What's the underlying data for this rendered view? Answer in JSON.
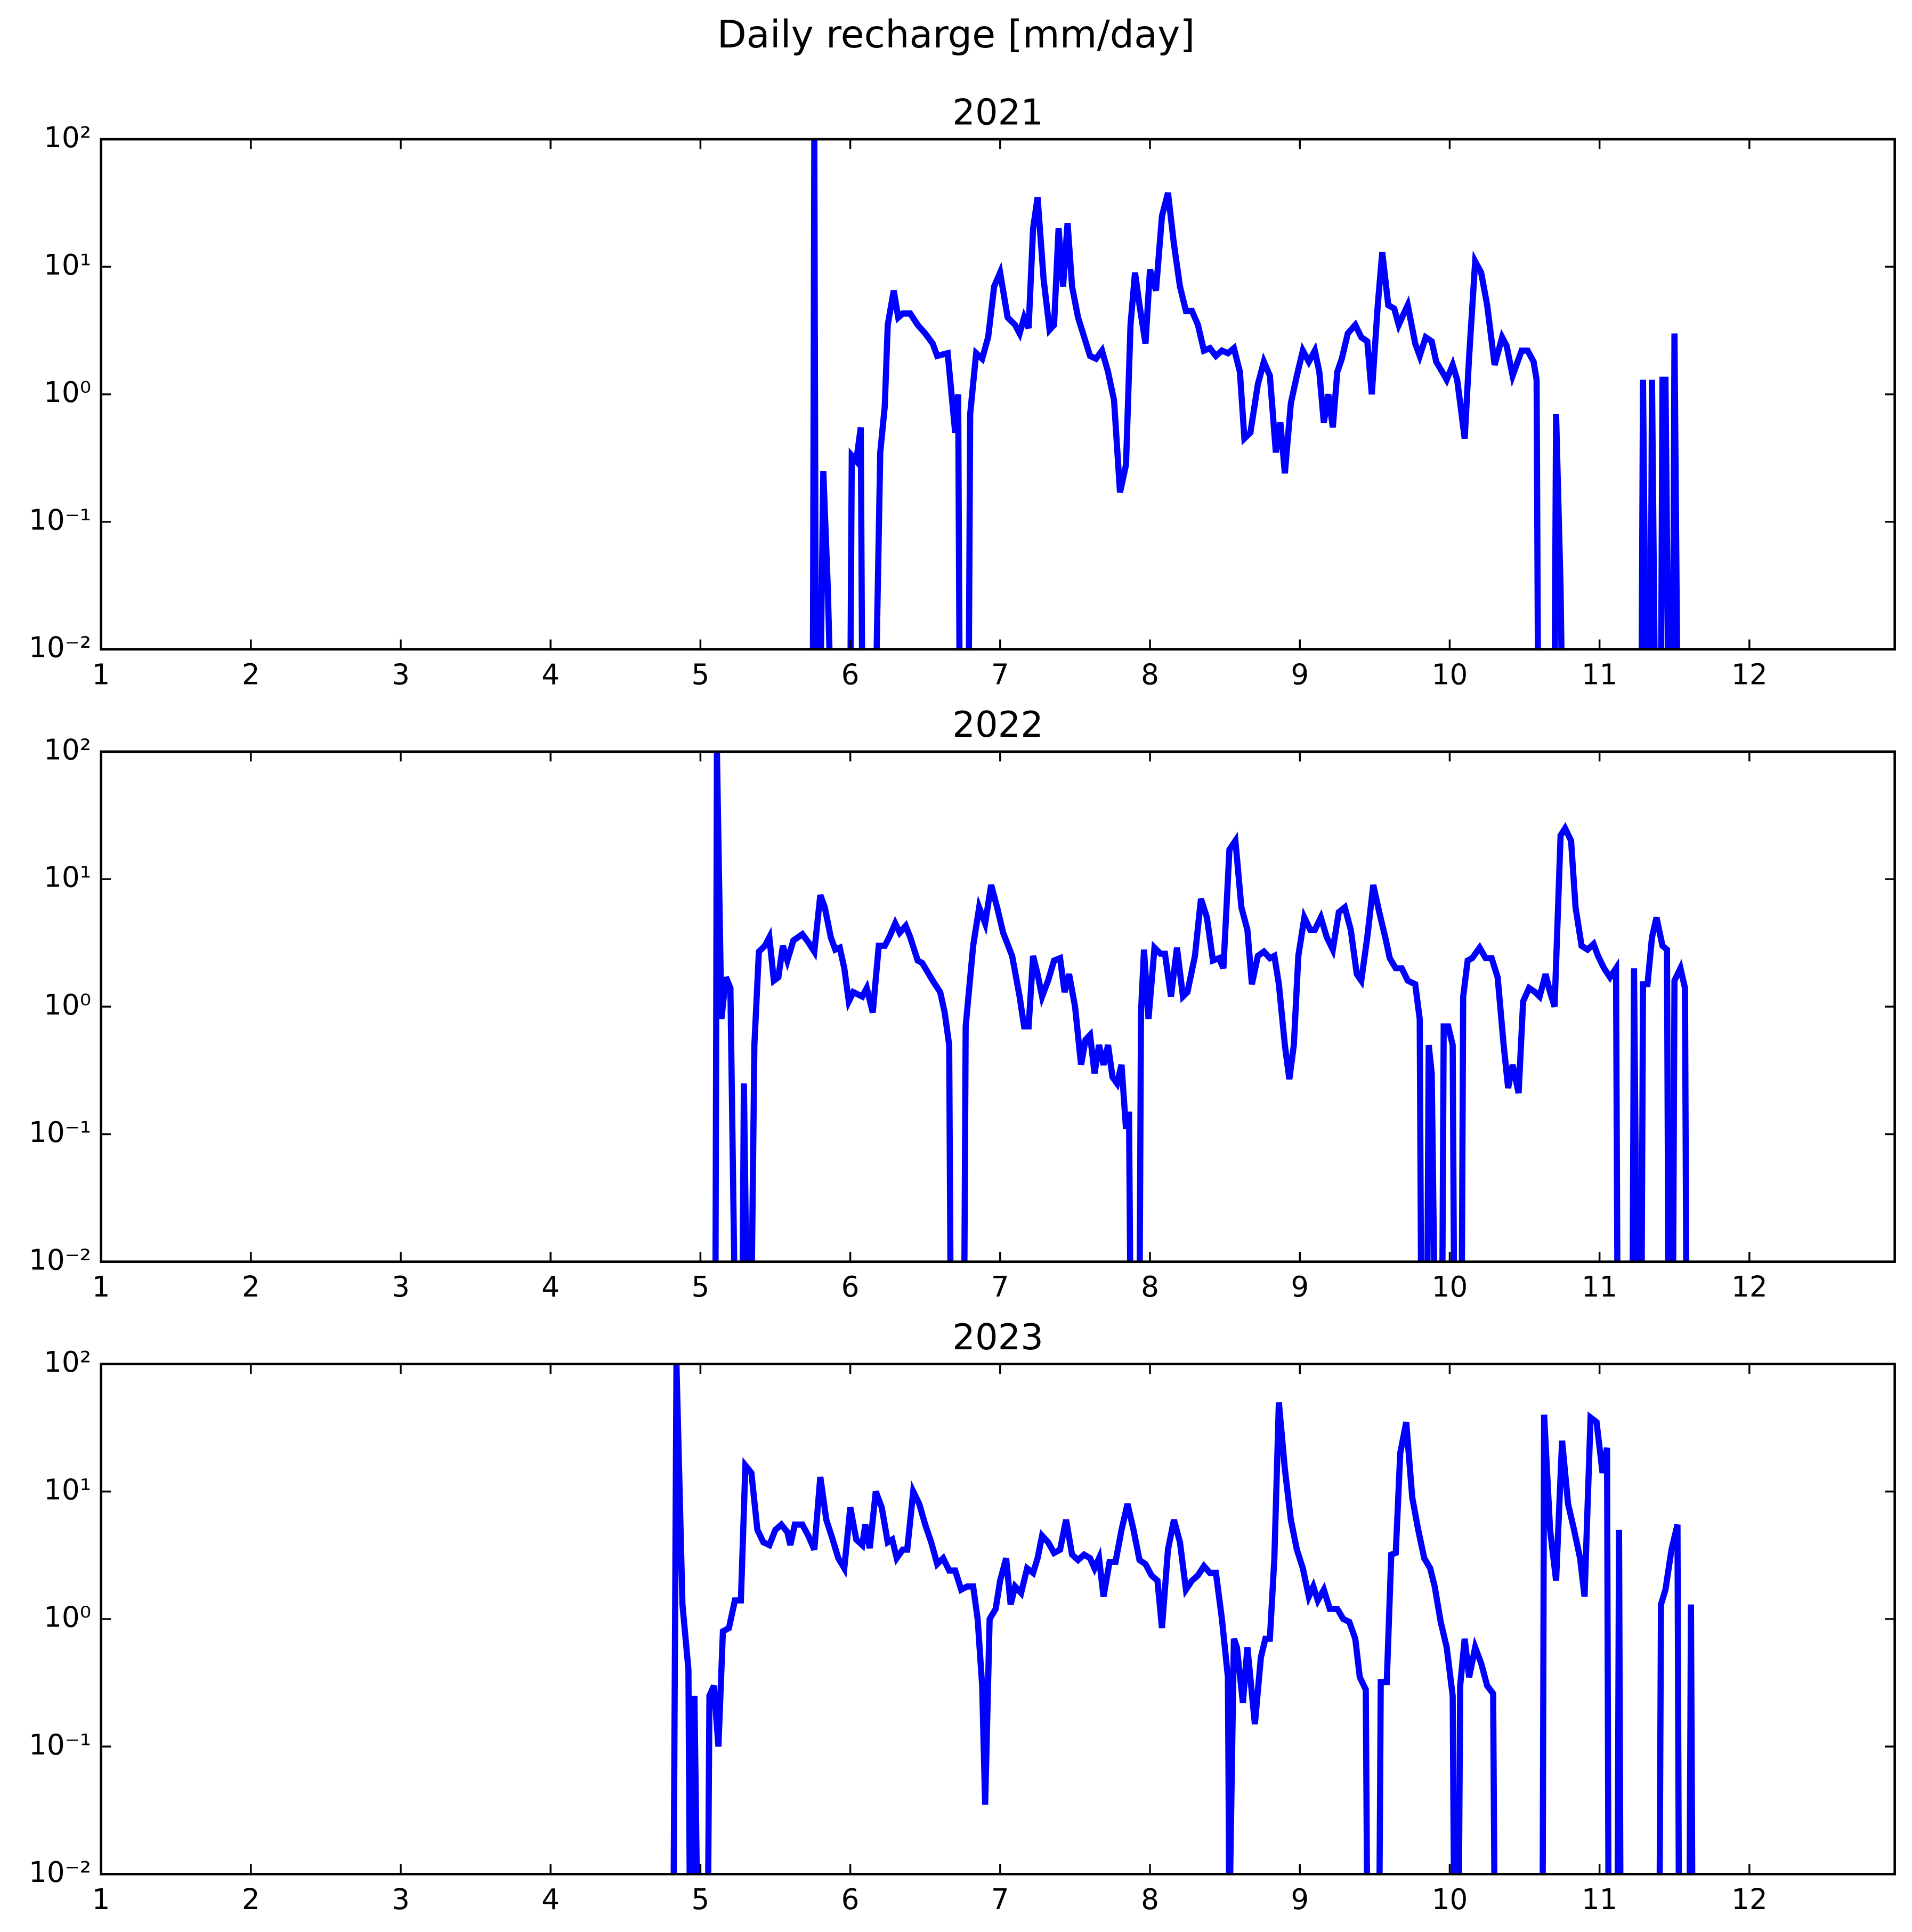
{
  "title": "Daily recharge [mm/day]",
  "chart_data": [
    {
      "type": "line",
      "title": "2021",
      "color": "#0000ff",
      "yscale": "log",
      "xlim": [
        1,
        12.97
      ],
      "xticks": [
        1,
        2,
        3,
        4,
        5,
        6,
        7,
        8,
        9,
        10,
        11,
        12
      ],
      "ylim": [
        0.01,
        100
      ],
      "yticks": [
        {
          "value": 0.01,
          "label": "10⁻²"
        },
        {
          "value": 0.1,
          "label": "10⁻¹"
        },
        {
          "value": 1,
          "label": "10⁰"
        },
        {
          "value": 10,
          "label": "10¹"
        },
        {
          "value": 100,
          "label": "10²"
        }
      ],
      "x": [
        5.75,
        5.76,
        5.77,
        5.8,
        5.82,
        5.85,
        5.87,
        6.0,
        6.01,
        6.04,
        6.07,
        6.08,
        6.17,
        6.2,
        6.23,
        6.25,
        6.29,
        6.32,
        6.35,
        6.4,
        6.45,
        6.5,
        6.55,
        6.58,
        6.65,
        6.7,
        6.72,
        6.73,
        6.79,
        6.8,
        6.84,
        6.88,
        6.92,
        6.96,
        7.0,
        7.05,
        7.1,
        7.13,
        7.16,
        7.19,
        7.22,
        7.25,
        7.29,
        7.33,
        7.36,
        7.39,
        7.42,
        7.45,
        7.48,
        7.52,
        7.6,
        7.64,
        7.68,
        7.72,
        7.76,
        7.8,
        7.84,
        7.87,
        7.9,
        7.93,
        7.97,
        8.0,
        8.04,
        8.08,
        8.12,
        8.16,
        8.2,
        8.24,
        8.28,
        8.32,
        8.36,
        8.4,
        8.44,
        8.48,
        8.52,
        8.56,
        8.6,
        8.63,
        8.67,
        8.72,
        8.76,
        8.8,
        8.84,
        8.87,
        8.9,
        8.94,
        8.98,
        9.02,
        9.06,
        9.1,
        9.13,
        9.16,
        9.19,
        9.22,
        9.25,
        9.28,
        9.32,
        9.37,
        9.41,
        9.45,
        9.48,
        9.52,
        9.55,
        9.59,
        9.63,
        9.66,
        9.69,
        9.72,
        9.77,
        9.8,
        9.84,
        9.88,
        9.91,
        9.95,
        9.98,
        10.02,
        10.05,
        10.1,
        10.13,
        10.17,
        10.21,
        10.25,
        10.3,
        10.35,
        10.38,
        10.42,
        10.48,
        10.52,
        10.56,
        10.58,
        10.59,
        10.7,
        10.71,
        10.74,
        10.75,
        11.28,
        11.29,
        11.31,
        11.34,
        11.35,
        11.37,
        11.41,
        11.42,
        11.44,
        11.46,
        11.49,
        11.5,
        11.52
      ],
      "values": [
        0,
        100,
        0,
        0,
        0.25,
        0.03,
        0,
        0,
        0.33,
        0.3,
        0.55,
        0,
        0,
        0.35,
        0.8,
        3.5,
        6.5,
        4,
        4.3,
        4.3,
        3.5,
        3,
        2.5,
        2,
        2.1,
        0.5,
        1,
        0,
        0,
        0.7,
        2.1,
        1.9,
        2.8,
        7,
        9,
        4,
        3.5,
        3,
        4,
        3.3,
        20,
        35,
        8,
        3.2,
        3.5,
        20,
        7,
        22,
        7,
        4,
        2,
        1.9,
        2.2,
        1.5,
        0.9,
        0.17,
        0.28,
        3.5,
        9,
        5,
        2.5,
        9.5,
        6.5,
        25,
        38,
        15,
        7,
        4.5,
        4.5,
        3.5,
        2.2,
        2.3,
        2,
        2.2,
        2.1,
        2.3,
        1.5,
        0.45,
        0.5,
        1.2,
        1.8,
        1.4,
        0.35,
        0.6,
        0.24,
        0.85,
        1.4,
        2.2,
        1.8,
        2.2,
        1.5,
        0.6,
        1,
        0.55,
        1.5,
        1.9,
        3,
        3.5,
        2.8,
        2.6,
        1,
        5,
        13,
        5,
        4.7,
        3.5,
        4.2,
        5,
        2.5,
        2,
        2.8,
        2.6,
        1.8,
        1.5,
        1.3,
        1.7,
        1.3,
        0.45,
        2,
        11,
        9,
        5,
        1.7,
        2.8,
        2.4,
        1.4,
        2.2,
        2.2,
        1.8,
        1.3,
        0,
        0,
        0.7,
        0.03,
        0,
        0,
        1.3,
        0,
        0,
        1.3,
        0,
        0,
        1.3,
        1.3,
        0,
        0,
        3,
        0
      ]
    },
    {
      "type": "line",
      "title": "2022",
      "color": "#0000ff",
      "yscale": "log",
      "xlim": [
        1,
        12.97
      ],
      "xticks": [
        1,
        2,
        3,
        4,
        5,
        6,
        7,
        8,
        9,
        10,
        11,
        12
      ],
      "ylim": [
        0.01,
        100
      ],
      "yticks": [
        {
          "value": 0.01,
          "label": "10⁻²"
        },
        {
          "value": 0.1,
          "label": "10⁻¹"
        },
        {
          "value": 1,
          "label": "10⁰"
        },
        {
          "value": 10,
          "label": "10¹"
        },
        {
          "value": 100,
          "label": "10²"
        }
      ],
      "x": [
        5.1,
        5.11,
        5.14,
        5.17,
        5.2,
        5.23,
        5.28,
        5.29,
        5.31,
        5.34,
        5.36,
        5.39,
        5.43,
        5.46,
        5.49,
        5.52,
        5.55,
        5.58,
        5.62,
        5.68,
        5.72,
        5.76,
        5.8,
        5.83,
        5.87,
        5.9,
        5.93,
        5.96,
        5.99,
        6.02,
        6.08,
        6.11,
        6.15,
        6.19,
        6.23,
        6.26,
        6.3,
        6.33,
        6.37,
        6.4,
        6.45,
        6.48,
        6.55,
        6.6,
        6.63,
        6.66,
        6.67,
        6.76,
        6.77,
        6.82,
        6.86,
        6.9,
        6.94,
        6.98,
        7.02,
        7.08,
        7.13,
        7.16,
        7.19,
        7.22,
        7.25,
        7.28,
        7.32,
        7.36,
        7.4,
        7.43,
        7.46,
        7.5,
        7.54,
        7.57,
        7.6,
        7.63,
        7.66,
        7.69,
        7.72,
        7.75,
        7.78,
        7.81,
        7.84,
        7.86,
        7.87,
        7.93,
        7.94,
        7.96,
        7.99,
        8.03,
        8.07,
        8.1,
        8.14,
        8.18,
        8.22,
        8.25,
        8.3,
        8.34,
        8.38,
        8.42,
        8.46,
        8.49,
        8.53,
        8.57,
        8.61,
        8.65,
        8.68,
        8.72,
        8.76,
        8.8,
        8.83,
        8.86,
        8.9,
        8.93,
        8.96,
        8.99,
        9.03,
        9.07,
        9.1,
        9.14,
        9.18,
        9.22,
        9.26,
        9.3,
        9.34,
        9.38,
        9.41,
        9.45,
        9.49,
        9.53,
        9.57,
        9.6,
        9.64,
        9.68,
        9.72,
        9.77,
        9.8,
        9.81,
        9.85,
        9.86,
        9.88,
        9.9,
        9.95,
        9.96,
        9.99,
        10.02,
        10.03,
        10.08,
        10.09,
        10.12,
        10.15,
        10.2,
        10.24,
        10.28,
        10.32,
        10.36,
        10.39,
        10.42,
        10.46,
        10.49,
        10.53,
        10.57,
        10.6,
        10.64,
        10.67,
        10.7,
        10.74,
        10.77,
        10.81,
        10.84,
        10.88,
        10.92,
        10.96,
        10.99,
        11.03,
        11.07,
        11.11,
        11.12,
        11.22,
        11.23,
        11.25,
        11.28,
        11.29,
        11.32,
        11.35,
        11.38,
        11.42,
        11.45,
        11.46,
        11.49,
        11.5,
        11.54,
        11.57,
        11.58
      ],
      "values": [
        0,
        100,
        0.8,
        1.7,
        1.4,
        0,
        0,
        0.25,
        0,
        0,
        0.5,
        2.7,
        3,
        3.5,
        1.6,
        1.7,
        3,
        2.3,
        3.3,
        3.7,
        3.2,
        2.7,
        7.5,
        6,
        3.5,
        2.8,
        2.9,
        2,
        1.1,
        1.3,
        1.2,
        1.4,
        0.9,
        3,
        3,
        3.5,
        4.5,
        3.8,
        4.3,
        3.5,
        2.3,
        2.2,
        1.6,
        1.3,
        0.9,
        0.5,
        0,
        0,
        0.7,
        3,
        6,
        4.5,
        9,
        6,
        3.8,
        2.5,
        1.2,
        0.7,
        0.7,
        2.5,
        1.8,
        1.2,
        1.6,
        2.3,
        2.4,
        1.3,
        1.8,
        1,
        0.35,
        0.55,
        0.6,
        0.3,
        0.5,
        0.35,
        0.5,
        0.28,
        0.25,
        0.35,
        0.11,
        0.15,
        0,
        0,
        0.9,
        2.8,
        0.8,
        2.9,
        2.6,
        2.6,
        1.2,
        2.9,
        1.2,
        1.3,
        2.5,
        7,
        5,
        2.3,
        2.4,
        2,
        17,
        20,
        6,
        4,
        1.5,
        2.5,
        2.7,
        2.4,
        2.5,
        1.5,
        0.5,
        0.27,
        0.5,
        2.5,
        5,
        4,
        4,
        5,
        3.5,
        2.8,
        5.5,
        6,
        4,
        1.8,
        1.6,
        3.5,
        9,
        5.5,
        3.5,
        2.4,
        2,
        2,
        1.6,
        1.5,
        0.8,
        0,
        0,
        0.5,
        0.3,
        0,
        0,
        0.7,
        0.7,
        0.5,
        0,
        0,
        1.2,
        2.3,
        2.4,
        2.9,
        2.4,
        2.4,
        1.7,
        0.5,
        0.23,
        0.35,
        0.21,
        1.1,
        1.4,
        1.3,
        1.2,
        1.8,
        1.3,
        1,
        22,
        25,
        20,
        6,
        3,
        2.8,
        3.1,
        2.5,
        2,
        1.7,
        2,
        0,
        0,
        2,
        0,
        0,
        1.5,
        1.5,
        3.5,
        5,
        3,
        2.8,
        0,
        0,
        1.6,
        2,
        1.4,
        0
      ]
    },
    {
      "type": "line",
      "title": "2023",
      "color": "#0000ff",
      "yscale": "log",
      "xlim": [
        1,
        12.97
      ],
      "xticks": [
        1,
        2,
        3,
        4,
        5,
        6,
        7,
        8,
        9,
        10,
        11,
        12
      ],
      "ylim": [
        0.01,
        100
      ],
      "yticks": [
        {
          "value": 0.01,
          "label": "10⁻²"
        },
        {
          "value": 0.1,
          "label": "10⁻¹"
        },
        {
          "value": 1,
          "label": "10⁰"
        },
        {
          "value": 10,
          "label": "10¹"
        },
        {
          "value": 100,
          "label": "10²"
        }
      ],
      "x": [
        4.82,
        4.84,
        4.88,
        4.92,
        4.93,
        4.95,
        4.96,
        4.98,
        5.05,
        5.06,
        5.09,
        5.12,
        5.15,
        5.19,
        5.23,
        5.27,
        5.3,
        5.34,
        5.38,
        5.42,
        5.46,
        5.5,
        5.54,
        5.58,
        5.6,
        5.63,
        5.68,
        5.72,
        5.76,
        5.8,
        5.84,
        5.88,
        5.92,
        5.96,
        6.0,
        6.04,
        6.08,
        6.1,
        6.13,
        6.17,
        6.21,
        6.25,
        6.28,
        6.31,
        6.35,
        6.38,
        6.42,
        6.46,
        6.5,
        6.54,
        6.58,
        6.62,
        6.66,
        6.7,
        6.74,
        6.78,
        6.82,
        6.85,
        6.88,
        6.9,
        6.93,
        6.97,
        7.0,
        7.04,
        7.07,
        7.1,
        7.14,
        7.18,
        7.22,
        7.25,
        7.28,
        7.32,
        7.36,
        7.4,
        7.44,
        7.48,
        7.52,
        7.56,
        7.6,
        7.63,
        7.66,
        7.69,
        7.73,
        7.77,
        7.81,
        7.85,
        7.89,
        7.93,
        7.97,
        8.01,
        8.05,
        8.08,
        8.12,
        8.16,
        8.2,
        8.24,
        8.28,
        8.32,
        8.36,
        8.4,
        8.44,
        8.48,
        8.52,
        8.53,
        8.56,
        8.58,
        8.62,
        8.65,
        8.7,
        8.74,
        8.77,
        8.8,
        8.83,
        8.86,
        8.9,
        8.94,
        8.98,
        9.02,
        9.06,
        9.09,
        9.12,
        9.16,
        9.2,
        9.25,
        9.29,
        9.33,
        9.37,
        9.4,
        9.44,
        9.45,
        9.53,
        9.54,
        9.58,
        9.61,
        9.64,
        9.67,
        9.71,
        9.75,
        9.79,
        9.83,
        9.87,
        9.9,
        9.94,
        9.98,
        10.02,
        10.03,
        10.06,
        10.07,
        10.1,
        10.13,
        10.17,
        10.21,
        10.25,
        10.29,
        10.3,
        10.62,
        10.63,
        10.67,
        10.71,
        10.75,
        10.79,
        10.83,
        10.87,
        10.9,
        10.94,
        10.98,
        11.02,
        11.05,
        11.06,
        11.12,
        11.13,
        11.14,
        11.4,
        11.41,
        11.44,
        11.48,
        11.52,
        11.53,
        11.6,
        11.61,
        11.62
      ],
      "values": [
        0,
        100,
        1.3,
        0.4,
        0,
        0,
        0.25,
        0,
        0,
        0.25,
        0.3,
        0.1,
        0.8,
        0.85,
        1.4,
        1.4,
        16,
        14,
        5,
        4,
        3.8,
        5,
        5.5,
        4.8,
        3.8,
        5.5,
        5.5,
        4.5,
        3.5,
        13,
        6,
        4.3,
        3,
        2.5,
        7.5,
        4.2,
        3.8,
        5.5,
        3.6,
        10,
        7.5,
        4,
        4.2,
        3,
        3.5,
        3.5,
        10,
        8,
        5.5,
        4,
        2.7,
        3,
        2.4,
        2.4,
        1.7,
        1.8,
        1.8,
        1,
        0.3,
        0.035,
        1,
        1.2,
        2,
        3,
        1.3,
        1.8,
        1.6,
        2.5,
        2.3,
        3,
        4.5,
        4,
        3.3,
        3.5,
        6,
        3.2,
        2.9,
        3.2,
        3,
        2.5,
        3,
        1.5,
        2.8,
        2.8,
        5,
        8,
        5,
        2.9,
        2.7,
        2.2,
        2,
        0.85,
        3.5,
        6,
        4,
        1.7,
        2,
        2.2,
        2.6,
        2.3,
        2.3,
        1,
        0.35,
        0,
        0.7,
        0.6,
        0.22,
        0.6,
        0.15,
        0.5,
        0.7,
        0.7,
        3,
        50,
        15,
        6,
        3.5,
        2.5,
        1.5,
        1.8,
        1.4,
        1.7,
        1.2,
        1.2,
        1,
        0.95,
        0.7,
        0.35,
        0.28,
        0,
        0,
        0.32,
        0.32,
        3.2,
        3.3,
        20,
        35,
        9,
        5,
        3,
        2.5,
        1.8,
        0.95,
        0.6,
        0.25,
        0,
        0,
        0.3,
        0.7,
        0.35,
        0.6,
        0.45,
        0.3,
        0.26,
        0,
        0,
        40,
        5,
        2,
        25,
        8,
        5,
        3,
        1.5,
        38,
        35,
        14,
        22,
        0,
        0,
        5,
        0,
        0,
        1.3,
        1.7,
        3.5,
        5.5,
        0,
        0,
        1.3,
        0
      ]
    }
  ]
}
